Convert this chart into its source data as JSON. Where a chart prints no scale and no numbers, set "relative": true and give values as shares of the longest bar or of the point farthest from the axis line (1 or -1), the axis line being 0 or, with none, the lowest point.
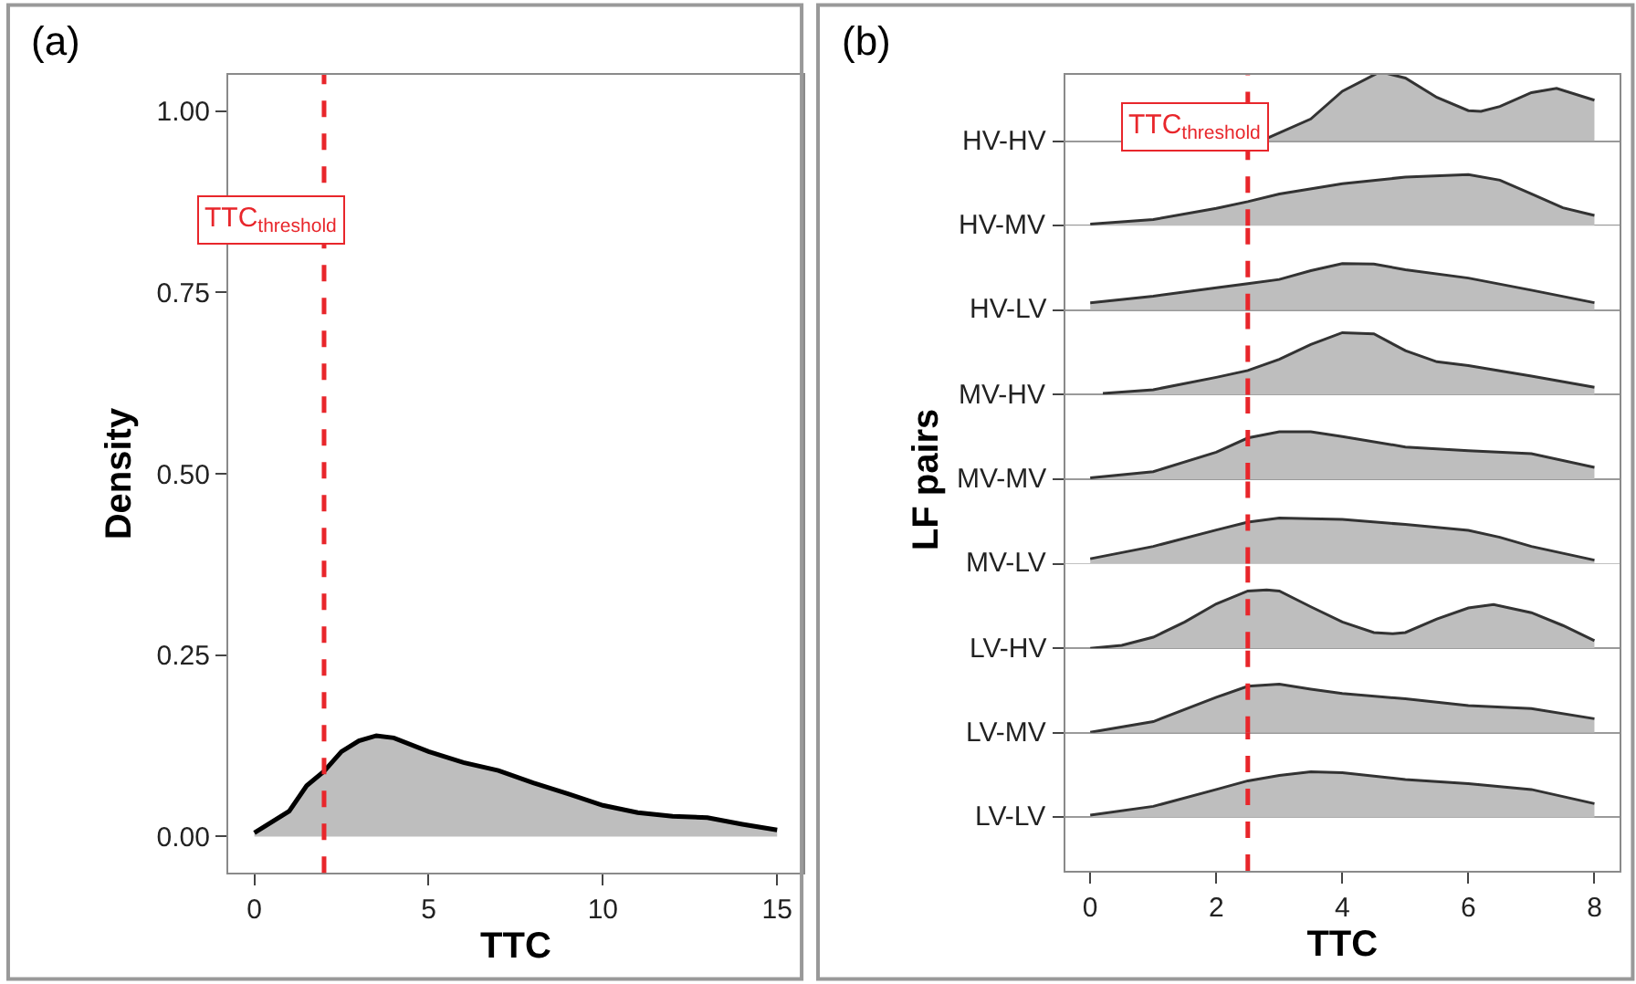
{
  "chart_data": [
    {
      "type": "area",
      "title": "(a)",
      "xlabel": "TTC",
      "ylabel": "Density",
      "color": "#bebebe",
      "x": [
        0,
        1,
        1.5,
        2,
        2.5,
        3,
        3.5,
        4,
        5,
        6,
        7,
        8,
        9,
        10,
        11,
        12,
        13,
        14,
        15
      ],
      "values": [
        0.005,
        0.035,
        0.07,
        0.09,
        0.117,
        0.132,
        0.139,
        0.136,
        0.117,
        0.102,
        0.091,
        0.074,
        0.059,
        0.043,
        0.033,
        0.028,
        0.026,
        0.017,
        0.009
      ],
      "xlim": [
        -0.75,
        15.75
      ],
      "xticks": [
        0,
        5,
        10,
        15
      ],
      "ylim": [
        -0.05,
        1.05
      ],
      "yticks": [
        {
          "value": 0,
          "label": "0.00"
        },
        {
          "value": 0.25,
          "label": "0.25"
        },
        {
          "value": 0.5,
          "label": "0.50"
        },
        {
          "value": 0.75,
          "label": "0.75"
        },
        {
          "value": 1,
          "label": "1.00"
        }
      ],
      "ref_lines": [
        {
          "axis": "x",
          "value": 2,
          "color": "#e8262b",
          "line_style": "dashed"
        }
      ],
      "annotations": [
        {
          "text": "TTC$_{threshold}$",
          "x": 2,
          "y": 0.85
        }
      ],
      "grid": false
    },
    {
      "type": "area",
      "title": "(b)",
      "ylabel": "HV-HV",
      "relative": true,
      "color": "#bebebe",
      "xlim": [
        -0.4,
        8.4
      ],
      "xticks": [
        0,
        2,
        4,
        6,
        8
      ],
      "tick_labels": false,
      "x": [
        2.8,
        3.5,
        4,
        4.6,
        5,
        5.5,
        6,
        6.2,
        6.5,
        7,
        7.4,
        8
      ],
      "values": [
        0.04,
        0.32,
        0.72,
        1.0,
        0.91,
        0.63,
        0.44,
        0.43,
        0.5,
        0.7,
        0.76,
        0.59
      ],
      "ref_lines": [
        {
          "axis": "x",
          "value": 2.5,
          "color": "#e8262b",
          "line_style": "dashed"
        }
      ],
      "annotations": [
        {
          "text": "TTC$_{threshold}$",
          "x": 2.5
        }
      ],
      "grid": false
    },
    {
      "type": "area",
      "ylabel": "HV-MV",
      "relative": true,
      "color": "#bebebe",
      "xlim": [
        -0.4,
        8.4
      ],
      "xticks": [
        0,
        2,
        4,
        6,
        8
      ],
      "tick_labels": false,
      "x": [
        0,
        1,
        2,
        2.5,
        3,
        4,
        5,
        6,
        6.5,
        7,
        7.5,
        8
      ],
      "values": [
        0.03,
        0.12,
        0.34,
        0.47,
        0.62,
        0.82,
        0.95,
        1.0,
        0.89,
        0.62,
        0.35,
        0.2
      ],
      "ref_lines": [
        {
          "axis": "x",
          "value": 2.5,
          "color": "#e8262b",
          "line_style": "dashed"
        }
      ],
      "grid": false
    },
    {
      "type": "area",
      "ylabel": "HV-LV",
      "relative": true,
      "color": "#bebebe",
      "xlim": [
        -0.4,
        8.4
      ],
      "xticks": [
        0,
        2,
        4,
        6,
        8
      ],
      "tick_labels": false,
      "x": [
        0,
        1,
        2,
        2.5,
        3,
        3.5,
        4,
        4.5,
        5,
        6,
        7,
        8
      ],
      "values": [
        0.16,
        0.3,
        0.48,
        0.57,
        0.66,
        0.85,
        1.0,
        0.99,
        0.87,
        0.69,
        0.43,
        0.16
      ],
      "ref_lines": [
        {
          "axis": "x",
          "value": 2.5,
          "color": "#e8262b",
          "line_style": "dashed"
        }
      ],
      "grid": false
    },
    {
      "type": "area",
      "ylabel": "MV-HV",
      "relative": true,
      "color": "#bebebe",
      "xlim": [
        -0.4,
        8.4
      ],
      "xticks": [
        0,
        2,
        4,
        6,
        8
      ],
      "tick_labels": false,
      "x": [
        0.2,
        1,
        2,
        2.5,
        3,
        3.5,
        4,
        4.5,
        5,
        5.5,
        6,
        7,
        8
      ],
      "values": [
        0.02,
        0.08,
        0.28,
        0.39,
        0.57,
        0.81,
        1.0,
        0.98,
        0.71,
        0.53,
        0.47,
        0.3,
        0.12
      ],
      "ref_lines": [
        {
          "axis": "x",
          "value": 2.5,
          "color": "#e8262b",
          "line_style": "dashed"
        }
      ],
      "grid": false
    },
    {
      "type": "area",
      "ylabel": "MV-MV",
      "relative": true,
      "color": "#bebebe",
      "xlim": [
        -0.4,
        8.4
      ],
      "xticks": [
        0,
        2,
        4,
        6,
        8
      ],
      "tick_labels": false,
      "x": [
        0,
        1,
        2,
        2.5,
        3,
        3.5,
        4,
        5,
        6,
        7,
        8
      ],
      "values": [
        0.03,
        0.16,
        0.57,
        0.87,
        1.0,
        1.0,
        0.9,
        0.68,
        0.6,
        0.54,
        0.25
      ],
      "ref_lines": [
        {
          "axis": "x",
          "value": 2.5,
          "color": "#e8262b",
          "line_style": "dashed"
        }
      ],
      "annotations": [
        "LF pairs"
      ],
      "grid": false
    },
    {
      "type": "area",
      "ylabel": "MV-LV",
      "relative": true,
      "color": "#bebebe",
      "xlim": [
        -0.4,
        8.4
      ],
      "xticks": [
        0,
        2,
        4,
        6,
        8
      ],
      "tick_labels": false,
      "x": [
        0,
        1,
        2,
        2.5,
        3,
        4,
        5,
        6,
        6.5,
        7,
        8
      ],
      "values": [
        0.11,
        0.38,
        0.74,
        0.91,
        1.0,
        0.97,
        0.86,
        0.73,
        0.58,
        0.38,
        0.08
      ],
      "ref_lines": [
        {
          "axis": "x",
          "value": 2.5,
          "color": "#e8262b",
          "line_style": "dashed"
        }
      ],
      "grid": false
    },
    {
      "type": "area",
      "ylabel": "LV-HV",
      "relative": true,
      "color": "#bebebe",
      "xlim": [
        -0.4,
        8.4
      ],
      "xticks": [
        0,
        2,
        4,
        6,
        8
      ],
      "tick_labels": false,
      "x": [
        0,
        0.5,
        1,
        1.5,
        2,
        2.5,
        2.8,
        3,
        3.5,
        4,
        4.5,
        4.8,
        5,
        5.5,
        6,
        6.4,
        7,
        7.5,
        8
      ],
      "values": [
        0,
        0.05,
        0.19,
        0.45,
        0.76,
        0.98,
        1.0,
        0.98,
        0.71,
        0.45,
        0.27,
        0.25,
        0.27,
        0.5,
        0.69,
        0.75,
        0.61,
        0.39,
        0.13
      ],
      "ref_lines": [
        {
          "axis": "x",
          "value": 2.5,
          "color": "#e8262b",
          "line_style": "dashed"
        }
      ],
      "grid": false
    },
    {
      "type": "area",
      "ylabel": "LV-MV",
      "relative": true,
      "color": "#bebebe",
      "xlim": [
        -0.4,
        8.4
      ],
      "xticks": [
        0,
        2,
        4,
        6,
        8
      ],
      "tick_labels": false,
      "x": [
        0,
        1,
        2,
        2.5,
        3,
        3.5,
        4,
        5,
        6,
        7,
        8
      ],
      "values": [
        0.01,
        0.23,
        0.73,
        0.96,
        1.0,
        0.9,
        0.81,
        0.7,
        0.56,
        0.5,
        0.29
      ],
      "ref_lines": [
        {
          "axis": "x",
          "value": 2.5,
          "color": "#e8262b",
          "line_style": "dashed"
        }
      ],
      "grid": false
    },
    {
      "type": "area",
      "ylabel": "LV-LV",
      "xlabel": "TTC",
      "relative": true,
      "color": "#bebebe",
      "xlim": [
        -0.4,
        8.4
      ],
      "xticks": [
        0,
        2,
        4,
        6,
        8
      ],
      "tick_labels": "x",
      "x": [
        0,
        1,
        2,
        2.5,
        3,
        3.5,
        4,
        5,
        6,
        7,
        8
      ],
      "values": [
        0.05,
        0.24,
        0.61,
        0.8,
        0.92,
        1.0,
        0.98,
        0.83,
        0.74,
        0.61,
        0.3
      ],
      "ref_lines": [
        {
          "axis": "x",
          "value": 2.5,
          "color": "#e8262b",
          "line_style": "dashed"
        }
      ],
      "grid": false
    }
  ]
}
